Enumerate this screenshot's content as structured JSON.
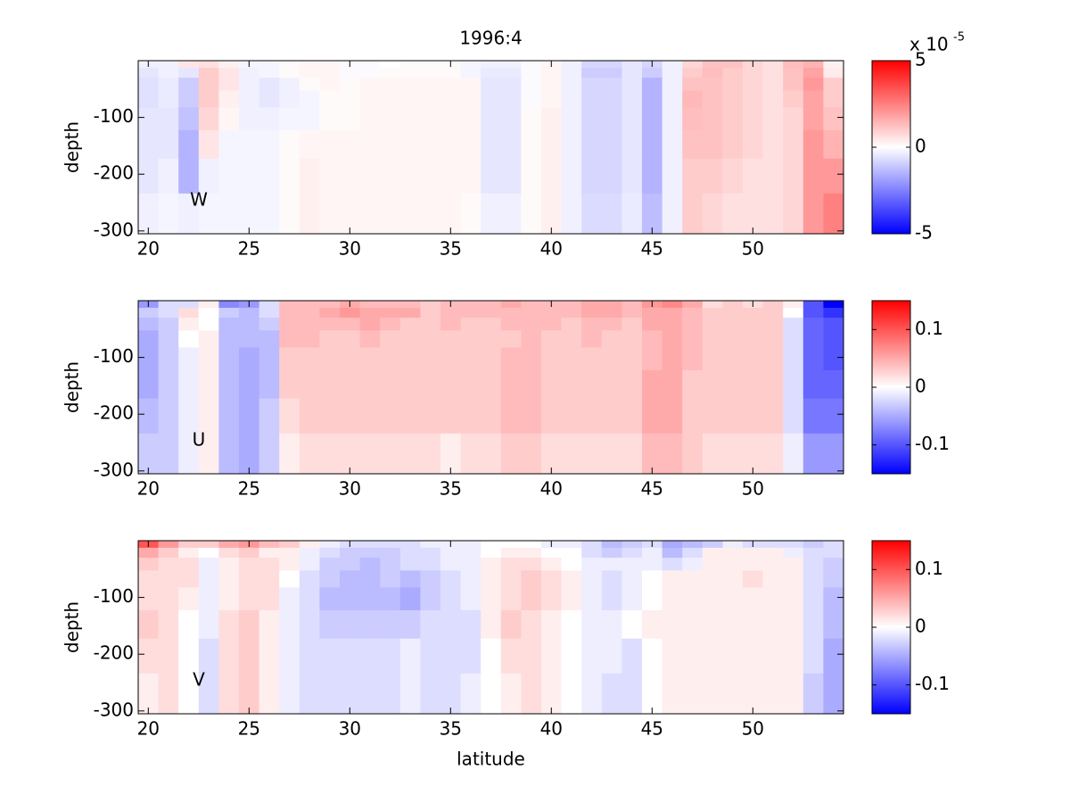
{
  "chart_data": [
    {
      "type": "heatmap",
      "title": "1996:4",
      "annotation": "W",
      "ylabel": "depth",
      "x": [
        20,
        21,
        22,
        23,
        24,
        25,
        26,
        27,
        28,
        29,
        30,
        31,
        32,
        33,
        34,
        35,
        36,
        37,
        38,
        39,
        40,
        41,
        42,
        43,
        44,
        45,
        46,
        47,
        48,
        49,
        50,
        51,
        52,
        53,
        54
      ],
      "y": [
        -5,
        -20,
        -40,
        -65,
        -100,
        -145,
        -200,
        -268
      ],
      "xlim": [
        19.5,
        54.5
      ],
      "ylim": [
        -305,
        0
      ],
      "xticks": [
        20,
        25,
        30,
        35,
        40,
        45,
        50
      ],
      "yticks": [
        -300,
        -200,
        -100
      ],
      "colormap": [
        "#0000ff",
        "#ffffff",
        "#ff0000"
      ],
      "clim": [
        -5,
        5
      ],
      "cticks": [
        -5,
        0,
        5
      ],
      "colorbar_multiplier": {
        "base": "x 10",
        "exponent": "-5"
      },
      "values": [
        [
          -0.3,
          -0.3,
          0.5,
          0.6,
          0.3,
          -0.2,
          -0.2,
          0.1,
          0.2,
          0.2,
          -0.1,
          -0.1,
          0,
          0.1,
          0.1,
          0.1,
          -0.2,
          -0.3,
          -0.3,
          -0.1,
          0.2,
          -0.3,
          -0.8,
          -0.8,
          -0.5,
          -0.8,
          -0.3,
          0.8,
          1.2,
          1.2,
          0.8,
          0.6,
          1.3,
          1.5,
          0.3
        ],
        [
          -0.5,
          -0.3,
          -0.5,
          1.0,
          0.5,
          -0.3,
          -0.2,
          0.1,
          0.2,
          0.2,
          -0.1,
          -0.1,
          0.1,
          0.1,
          0.1,
          0.1,
          -0.2,
          -0.4,
          -0.4,
          -0.1,
          0.2,
          -0.3,
          -1.0,
          -1.0,
          -0.5,
          -1.0,
          -0.3,
          1.0,
          1.3,
          1.0,
          0.8,
          0.6,
          1.2,
          1.8,
          0.4
        ],
        [
          -0.6,
          -0.4,
          -1.0,
          1.0,
          0.5,
          -0.3,
          -0.5,
          -0.3,
          0.1,
          0.2,
          0.1,
          0.2,
          0.2,
          0.2,
          0.2,
          0.2,
          0.2,
          -0.5,
          -0.5,
          -0.1,
          0.2,
          -0.3,
          -0.8,
          -0.8,
          -0.5,
          -1.5,
          -0.3,
          1.2,
          1.2,
          1.0,
          0.8,
          0.6,
          1.2,
          2.0,
          1.0
        ],
        [
          -0.6,
          -0.4,
          -1.0,
          1.0,
          0.3,
          -0.3,
          -0.5,
          -0.3,
          -0.2,
          0.1,
          0.1,
          0.2,
          0.2,
          0.2,
          0.2,
          0.2,
          0.2,
          -0.5,
          -0.5,
          -0.1,
          0.2,
          -0.3,
          -0.8,
          -0.8,
          -0.5,
          -1.5,
          -0.3,
          1.4,
          1.2,
          1.0,
          0.8,
          0.6,
          1.0,
          1.8,
          1.0
        ],
        [
          -0.5,
          -0.5,
          -1.2,
          0.8,
          0.2,
          -0.3,
          -0.3,
          -0.2,
          -0.2,
          0.1,
          0.1,
          0.2,
          0.2,
          0.2,
          0.2,
          0.2,
          0.2,
          -0.5,
          -0.5,
          0.1,
          0.3,
          -0.3,
          -0.8,
          -0.8,
          -0.5,
          -1.5,
          -0.3,
          1.3,
          1.2,
          1.0,
          0.8,
          0.6,
          0.8,
          1.8,
          1.2
        ],
        [
          -0.5,
          -0.5,
          -1.5,
          0.5,
          -0.2,
          -0.2,
          -0.2,
          0.1,
          0.2,
          0.2,
          0.2,
          0.2,
          0.2,
          0.2,
          0.2,
          0.2,
          0.2,
          -0.5,
          -0.5,
          0.1,
          0.3,
          -0.3,
          -0.8,
          -0.8,
          -0.5,
          -1.5,
          -0.3,
          1.2,
          1.2,
          1.0,
          0.8,
          0.6,
          0.8,
          2.0,
          1.5
        ],
        [
          -0.5,
          -0.3,
          -1.5,
          -0.3,
          -0.2,
          -0.2,
          -0.2,
          0.1,
          0.3,
          0.2,
          0.2,
          0.2,
          0.2,
          0.2,
          0.2,
          0.2,
          0.2,
          -0.5,
          -0.5,
          0.1,
          0.3,
          -0.3,
          -0.8,
          -0.8,
          -0.5,
          -1.5,
          -0.3,
          1.0,
          1.0,
          0.8,
          0.6,
          0.6,
          0.8,
          2.0,
          2.0
        ],
        [
          -0.3,
          -0.2,
          -0.3,
          -0.2,
          -0.2,
          -0.2,
          -0.2,
          0.1,
          0.3,
          0.2,
          0.2,
          0.2,
          0.2,
          0.2,
          0.2,
          0.2,
          0.1,
          -0.3,
          -0.3,
          0.1,
          0.3,
          -0.3,
          -0.7,
          -0.7,
          -0.4,
          -1.3,
          -0.3,
          1.0,
          0.8,
          0.6,
          0.6,
          0.6,
          0.8,
          2.0,
          2.5
        ]
      ]
    },
    {
      "type": "heatmap",
      "annotation": "U",
      "ylabel": "depth",
      "x": [
        20,
        21,
        22,
        23,
        24,
        25,
        26,
        27,
        28,
        29,
        30,
        31,
        32,
        33,
        34,
        35,
        36,
        37,
        38,
        39,
        40,
        41,
        42,
        43,
        44,
        45,
        46,
        47,
        48,
        49,
        50,
        51,
        52,
        53,
        54
      ],
      "y": [
        -5,
        -20,
        -40,
        -65,
        -100,
        -145,
        -200,
        -268
      ],
      "xlim": [
        19.5,
        54.5
      ],
      "ylim": [
        -305,
        0
      ],
      "xticks": [
        20,
        25,
        30,
        35,
        40,
        45,
        50
      ],
      "yticks": [
        -300,
        -200,
        -100
      ],
      "colormap": [
        "#0000ff",
        "#ffffff",
        "#ff0000"
      ],
      "clim": [
        -0.15,
        0.15
      ],
      "cticks": [
        -0.1,
        0,
        0.1
      ],
      "values": [
        [
          -0.06,
          -0.02,
          -0.02,
          0.01,
          -0.07,
          -0.06,
          -0.02,
          0.04,
          0.04,
          0.04,
          0.05,
          0.04,
          0.04,
          0.04,
          0.03,
          0.04,
          0.04,
          0.04,
          0.05,
          0.04,
          0.04,
          0.04,
          0.05,
          0.05,
          0.04,
          0.06,
          0.07,
          0.05,
          0.02,
          0.03,
          0.02,
          0.03,
          0.01,
          -0.1,
          -0.15
        ],
        [
          -0.03,
          -0.02,
          0.02,
          0.0,
          -0.03,
          -0.04,
          -0.02,
          0.04,
          0.04,
          0.05,
          0.06,
          0.05,
          0.05,
          0.05,
          0.03,
          0.04,
          0.04,
          0.04,
          0.04,
          0.04,
          0.04,
          0.04,
          0.05,
          0.05,
          0.04,
          0.05,
          0.05,
          0.04,
          0.03,
          0.03,
          0.03,
          0.03,
          0.0,
          -0.1,
          -0.12
        ],
        [
          -0.04,
          -0.03,
          0.01,
          0.0,
          -0.04,
          -0.04,
          -0.03,
          0.04,
          0.04,
          0.04,
          0.04,
          0.05,
          0.04,
          0.03,
          0.03,
          0.04,
          0.03,
          0.03,
          0.04,
          0.04,
          0.04,
          0.03,
          0.04,
          0.04,
          0.03,
          0.05,
          0.05,
          0.04,
          0.03,
          0.03,
          0.03,
          0.03,
          -0.02,
          -0.09,
          -0.1
        ],
        [
          -0.05,
          -0.03,
          0.0,
          0.01,
          -0.04,
          -0.04,
          -0.04,
          0.04,
          0.04,
          0.03,
          0.03,
          0.04,
          0.03,
          0.03,
          0.03,
          0.03,
          0.03,
          0.03,
          0.03,
          0.04,
          0.03,
          0.03,
          0.04,
          0.03,
          0.03,
          0.04,
          0.05,
          0.04,
          0.03,
          0.03,
          0.03,
          0.03,
          -0.02,
          -0.09,
          -0.1
        ],
        [
          -0.05,
          -0.03,
          -0.01,
          0.01,
          -0.04,
          -0.05,
          -0.04,
          0.03,
          0.03,
          0.03,
          0.03,
          0.03,
          0.03,
          0.03,
          0.03,
          0.03,
          0.03,
          0.03,
          0.04,
          0.04,
          0.03,
          0.03,
          0.03,
          0.03,
          0.03,
          0.04,
          0.05,
          0.04,
          0.03,
          0.03,
          0.03,
          0.03,
          -0.02,
          -0.09,
          -0.1
        ],
        [
          -0.05,
          -0.03,
          -0.01,
          0.01,
          -0.04,
          -0.05,
          -0.04,
          0.03,
          0.03,
          0.03,
          0.03,
          0.03,
          0.03,
          0.03,
          0.03,
          0.03,
          0.03,
          0.03,
          0.04,
          0.04,
          0.03,
          0.03,
          0.03,
          0.03,
          0.03,
          0.05,
          0.05,
          0.03,
          0.03,
          0.03,
          0.03,
          0.03,
          -0.02,
          -0.09,
          -0.09
        ],
        [
          -0.04,
          -0.03,
          -0.01,
          0.01,
          -0.04,
          -0.05,
          -0.03,
          0.02,
          0.03,
          0.03,
          0.03,
          0.03,
          0.03,
          0.03,
          0.03,
          0.03,
          0.03,
          0.03,
          0.04,
          0.04,
          0.03,
          0.03,
          0.03,
          0.03,
          0.03,
          0.05,
          0.05,
          0.03,
          0.03,
          0.03,
          0.03,
          0.03,
          -0.02,
          -0.08,
          -0.08
        ],
        [
          -0.03,
          -0.03,
          -0.01,
          0.01,
          -0.04,
          -0.05,
          -0.03,
          0.01,
          0.02,
          0.02,
          0.02,
          0.02,
          0.02,
          0.02,
          0.02,
          0.01,
          0.02,
          0.02,
          0.03,
          0.03,
          0.02,
          0.02,
          0.02,
          0.02,
          0.02,
          0.04,
          0.04,
          0.03,
          0.02,
          0.02,
          0.02,
          0.02,
          -0.01,
          -0.06,
          -0.06
        ]
      ]
    },
    {
      "type": "heatmap",
      "annotation": "V",
      "ylabel": "depth",
      "xlabel": "latitude",
      "x": [
        20,
        21,
        22,
        23,
        24,
        25,
        26,
        27,
        28,
        29,
        30,
        31,
        32,
        33,
        34,
        35,
        36,
        37,
        38,
        39,
        40,
        41,
        42,
        43,
        44,
        45,
        46,
        47,
        48,
        49,
        50,
        51,
        52,
        53,
        54
      ],
      "y": [
        -5,
        -20,
        -40,
        -65,
        -100,
        -145,
        -200,
        -268
      ],
      "xlim": [
        19.5,
        54.5
      ],
      "ylim": [
        -305,
        0
      ],
      "xticks": [
        20,
        25,
        30,
        35,
        40,
        45,
        50
      ],
      "yticks": [
        -300,
        -200,
        -100
      ],
      "colormap": [
        "#0000ff",
        "#ffffff",
        "#ff0000"
      ],
      "clim": [
        -0.15,
        0.15
      ],
      "cticks": [
        -0.1,
        0,
        0.1
      ],
      "values": [
        [
          0.1,
          0.06,
          0.03,
          0.03,
          0.05,
          0.06,
          0.04,
          0.03,
          0.01,
          -0.01,
          -0.02,
          -0.02,
          -0.02,
          -0.02,
          -0.01,
          -0.01,
          -0.01,
          0.0,
          0.0,
          0.0,
          -0.01,
          -0.01,
          -0.02,
          -0.04,
          -0.03,
          -0.02,
          -0.05,
          -0.04,
          -0.03,
          -0.01,
          -0.02,
          -0.02,
          -0.02,
          -0.03,
          -0.02
        ],
        [
          0.05,
          0.03,
          0.01,
          0.0,
          0.02,
          0.03,
          0.01,
          0.01,
          -0.01,
          -0.02,
          -0.03,
          -0.03,
          -0.03,
          -0.02,
          -0.02,
          -0.01,
          -0.01,
          0.0,
          0.01,
          0.01,
          0.0,
          0.0,
          -0.02,
          -0.03,
          -0.02,
          -0.01,
          -0.04,
          -0.02,
          0.01,
          0.01,
          0.01,
          0.01,
          -0.01,
          -0.02,
          -0.02
        ],
        [
          0.03,
          0.02,
          0.02,
          -0.01,
          0.01,
          0.02,
          0.02,
          0.01,
          -0.01,
          -0.03,
          -0.03,
          -0.04,
          -0.03,
          -0.02,
          -0.02,
          -0.01,
          -0.01,
          0.01,
          0.02,
          0.02,
          0.01,
          0.0,
          -0.01,
          -0.01,
          -0.01,
          -0.01,
          -0.02,
          -0.01,
          0.01,
          0.01,
          0.01,
          0.01,
          0.01,
          -0.02,
          -0.03
        ],
        [
          0.02,
          0.02,
          0.02,
          -0.01,
          0.01,
          0.02,
          0.02,
          0.0,
          -0.02,
          -0.03,
          -0.04,
          -0.04,
          -0.03,
          -0.04,
          -0.03,
          -0.02,
          -0.01,
          0.01,
          0.02,
          0.03,
          0.02,
          0.01,
          -0.01,
          -0.02,
          -0.01,
          0.0,
          0.01,
          0.01,
          0.01,
          0.01,
          0.02,
          0.01,
          0.01,
          -0.02,
          -0.03
        ],
        [
          0.02,
          0.02,
          0.01,
          -0.01,
          0.01,
          0.02,
          0.02,
          -0.01,
          -0.02,
          -0.04,
          -0.04,
          -0.04,
          -0.04,
          -0.05,
          -0.03,
          -0.02,
          -0.01,
          0.01,
          0.02,
          0.03,
          0.02,
          0.01,
          -0.01,
          -0.02,
          -0.01,
          0.0,
          0.01,
          0.01,
          0.01,
          0.01,
          0.01,
          0.01,
          0.01,
          -0.02,
          -0.04
        ],
        [
          0.03,
          0.02,
          0.0,
          -0.01,
          0.02,
          0.03,
          0.01,
          -0.01,
          -0.02,
          -0.03,
          -0.03,
          -0.03,
          -0.03,
          -0.03,
          -0.02,
          -0.02,
          -0.02,
          0.01,
          0.03,
          0.02,
          0.01,
          0.0,
          -0.01,
          -0.01,
          0.0,
          0.01,
          0.01,
          0.01,
          0.01,
          0.01,
          0.01,
          0.01,
          0.01,
          -0.02,
          -0.04
        ],
        [
          0.02,
          0.02,
          0.0,
          -0.02,
          0.02,
          0.03,
          0.01,
          -0.01,
          -0.02,
          -0.02,
          -0.02,
          -0.02,
          -0.02,
          -0.01,
          -0.02,
          -0.02,
          -0.02,
          0.0,
          0.02,
          0.02,
          0.01,
          0.0,
          -0.01,
          -0.01,
          -0.02,
          0.0,
          0.01,
          0.01,
          0.01,
          0.01,
          0.01,
          0.01,
          0.01,
          -0.02,
          -0.05
        ],
        [
          0.01,
          0.02,
          0.0,
          -0.02,
          0.02,
          0.03,
          0.01,
          -0.01,
          -0.02,
          -0.02,
          -0.02,
          -0.02,
          -0.02,
          -0.01,
          -0.02,
          -0.02,
          -0.01,
          0.0,
          0.01,
          0.02,
          0.01,
          0.0,
          -0.01,
          -0.02,
          -0.02,
          0.0,
          0.01,
          0.01,
          0.01,
          0.01,
          0.01,
          0.01,
          0.01,
          -0.03,
          -0.05
        ]
      ]
    }
  ]
}
